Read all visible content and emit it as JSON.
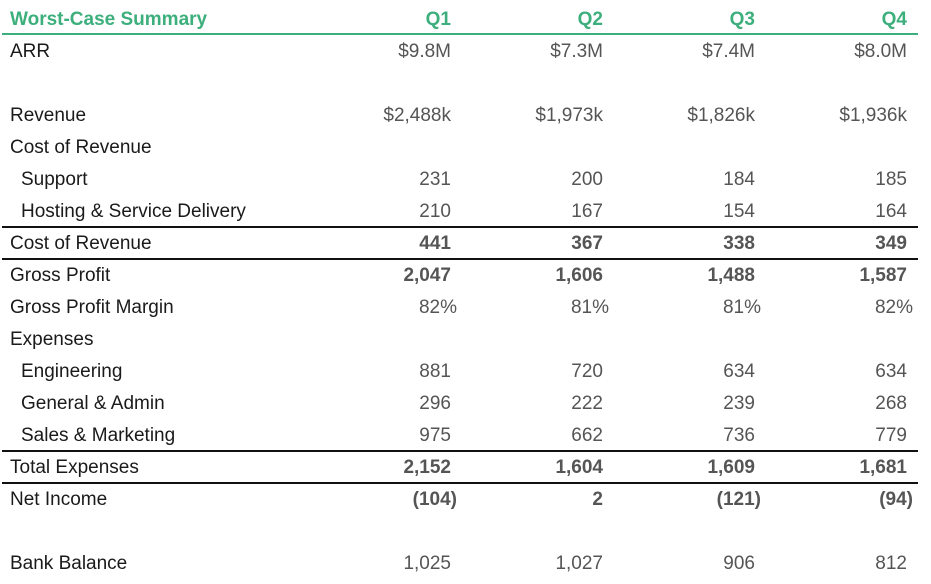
{
  "header": {
    "title": "Worst-Case Summary",
    "quarters": [
      "Q1",
      "Q2",
      "Q3",
      "Q4"
    ]
  },
  "accent_color": "#3daf7c",
  "rows": [
    {
      "label": "ARR",
      "values": [
        "$9.8M",
        "$7.3M",
        "$7.4M",
        "$8.0M"
      ],
      "bold": false,
      "indent": false
    },
    {
      "label": "Revenue",
      "values": [
        "$2,488k",
        "$1,973k",
        "$1,826k",
        "$1,936k"
      ],
      "bold": false,
      "indent": false
    },
    {
      "label": "Cost of Revenue",
      "values": [
        "",
        "",
        "",
        ""
      ],
      "bold": false,
      "indent": false
    },
    {
      "label": "Support",
      "values": [
        "231",
        "200",
        "184",
        "185"
      ],
      "bold": false,
      "indent": true
    },
    {
      "label": "Hosting & Service Delivery",
      "values": [
        "210",
        "167",
        "154",
        "164"
      ],
      "bold": false,
      "indent": true
    },
    {
      "label": "Cost of Revenue",
      "values": [
        "441",
        "367",
        "338",
        "349"
      ],
      "bold": true,
      "indent": false
    },
    {
      "label": "Gross Profit",
      "values": [
        "2,047",
        "1,606",
        "1,488",
        "1,587"
      ],
      "bold": true,
      "indent": false
    },
    {
      "label": "Gross Profit Margin",
      "values": [
        "82%",
        "81%",
        "81%",
        "82%"
      ],
      "bold": false,
      "indent": false
    },
    {
      "label": "Expenses",
      "values": [
        "",
        "",
        "",
        ""
      ],
      "bold": false,
      "indent": false
    },
    {
      "label": "Engineering",
      "values": [
        "881",
        "720",
        "634",
        "634"
      ],
      "bold": false,
      "indent": true
    },
    {
      "label": "General & Admin",
      "values": [
        "296",
        "222",
        "239",
        "268"
      ],
      "bold": false,
      "indent": true
    },
    {
      "label": "Sales & Marketing",
      "values": [
        "975",
        "662",
        "736",
        "779"
      ],
      "bold": false,
      "indent": true
    },
    {
      "label": "Total Expenses",
      "values": [
        "2,152",
        "1,604",
        "1,609",
        "1,681"
      ],
      "bold": true,
      "indent": false
    },
    {
      "label": "Net Income",
      "values": [
        "(104)",
        "2",
        "(121)",
        "(94)"
      ],
      "bold": true,
      "indent": false
    },
    {
      "label": "Bank Balance",
      "values": [
        "1,025",
        "1,027",
        "906",
        "812"
      ],
      "bold": false,
      "indent": false
    }
  ]
}
